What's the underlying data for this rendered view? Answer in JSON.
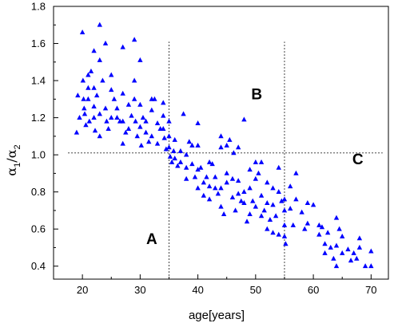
{
  "chart_data": {
    "type": "scatter",
    "xlabel": "age[years]",
    "ylabel": {
      "main": "α",
      "sub1": "1",
      "slash": "/α",
      "sub2": "2"
    },
    "xlim": [
      15,
      73
    ],
    "ylim": [
      0.33,
      1.8
    ],
    "x_ticks": [
      20,
      30,
      40,
      50,
      60,
      70
    ],
    "y_ticks": [
      0.4,
      0.6,
      0.8,
      1.0,
      1.2,
      1.4,
      1.6,
      1.8
    ],
    "x_tick_labels": [
      "20",
      "30",
      "40",
      "50",
      "60",
      "70"
    ],
    "y_tick_labels": [
      "0.4",
      "0.6",
      "0.8",
      "1.0",
      "1.2",
      "1.4",
      "1.6",
      "1.8"
    ],
    "grid": false,
    "marker": "triangle",
    "marker_color": "#0000ff",
    "reference_lines": {
      "horizontal": {
        "y": 1.01,
        "x_from": 17.5,
        "x_to": 72
      },
      "vertical": [
        {
          "x": 35,
          "y_from": 0.33,
          "y_to": 1.61
        },
        {
          "x": 55,
          "y_from": 0.33,
          "y_to": 1.61
        }
      ]
    },
    "region_labels": [
      {
        "text": "A",
        "x": 32,
        "y": 0.52
      },
      {
        "text": "B",
        "x": 50.2,
        "y": 1.3
      },
      {
        "text": "C",
        "x": 67.7,
        "y": 0.95
      }
    ],
    "points": [
      [
        19,
        1.12
      ],
      [
        19.2,
        1.32
      ],
      [
        19.5,
        1.2
      ],
      [
        20,
        1.66
      ],
      [
        20.1,
        1.4
      ],
      [
        20.2,
        1.3
      ],
      [
        20.3,
        1.25
      ],
      [
        20.4,
        1.22
      ],
      [
        20.6,
        1.16
      ],
      [
        21,
        1.43
      ],
      [
        21,
        1.36
      ],
      [
        21,
        1.3
      ],
      [
        21.2,
        1.18
      ],
      [
        21.5,
        1.45
      ],
      [
        22,
        1.56
      ],
      [
        22,
        1.36
      ],
      [
        22,
        1.26
      ],
      [
        22,
        1.2
      ],
      [
        22.2,
        1.13
      ],
      [
        22.5,
        1.32
      ],
      [
        23,
        1.7
      ],
      [
        23,
        1.51
      ],
      [
        23,
        1.22
      ],
      [
        23,
        1.1
      ],
      [
        23.5,
        1.4
      ],
      [
        24,
        1.6
      ],
      [
        24,
        1.25
      ],
      [
        24.2,
        1.18
      ],
      [
        24.5,
        1.14
      ],
      [
        25,
        1.43
      ],
      [
        25,
        1.35
      ],
      [
        25,
        1.2
      ],
      [
        25.5,
        1.3
      ],
      [
        26,
        1.25
      ],
      [
        26,
        1.2
      ],
      [
        26.5,
        1.18
      ],
      [
        27,
        1.58
      ],
      [
        27,
        1.33
      ],
      [
        27,
        1.18
      ],
      [
        27,
        1.06
      ],
      [
        27.5,
        1.12
      ],
      [
        28,
        1.27
      ],
      [
        28,
        1.14
      ],
      [
        28.5,
        1.21
      ],
      [
        29,
        1.62
      ],
      [
        29,
        1.4
      ],
      [
        29,
        1.3
      ],
      [
        29.2,
        1.18
      ],
      [
        29.5,
        1.1
      ],
      [
        30,
        1.51
      ],
      [
        30,
        1.27
      ],
      [
        30,
        1.15
      ],
      [
        30.2,
        1.05
      ],
      [
        30.5,
        1.2
      ],
      [
        31,
        1.18
      ],
      [
        31,
        1.12
      ],
      [
        31.5,
        1.07
      ],
      [
        32,
        1.3
      ],
      [
        32,
        1.24
      ],
      [
        32,
        1.1
      ],
      [
        32.5,
        1.3
      ],
      [
        33,
        1.17
      ],
      [
        33,
        1.06
      ],
      [
        33.5,
        1.14
      ],
      [
        34,
        1.28
      ],
      [
        34,
        1.21
      ],
      [
        34,
        1.14
      ],
      [
        34.2,
        1.09
      ],
      [
        34.5,
        1.03
      ],
      [
        35,
        1.18
      ],
      [
        35,
        1.1
      ],
      [
        35,
        1.04
      ],
      [
        35.2,
        0.99
      ],
      [
        35.5,
        0.96
      ],
      [
        35.8,
        1.02
      ],
      [
        36,
        1.08
      ],
      [
        36,
        0.98
      ],
      [
        36.5,
        0.94
      ],
      [
        37,
        1.02
      ],
      [
        37,
        0.96
      ],
      [
        37.5,
        1.22
      ],
      [
        38,
        1.0
      ],
      [
        38,
        0.93
      ],
      [
        38,
        0.87
      ],
      [
        38.5,
        1.07
      ],
      [
        39,
        1.05
      ],
      [
        39,
        0.95
      ],
      [
        39.5,
        0.88
      ],
      [
        40,
        1.17
      ],
      [
        40,
        1.05
      ],
      [
        40,
        0.92
      ],
      [
        40,
        0.82
      ],
      [
        40.5,
        0.93
      ],
      [
        41,
        0.85
      ],
      [
        41,
        0.78
      ],
      [
        41.5,
        0.88
      ],
      [
        42,
        0.96
      ],
      [
        42,
        0.83
      ],
      [
        42,
        0.76
      ],
      [
        42.5,
        0.95
      ],
      [
        43,
        0.88
      ],
      [
        43,
        0.82
      ],
      [
        43.5,
        0.79
      ],
      [
        44,
        1.1
      ],
      [
        44,
        1.04
      ],
      [
        44,
        0.82
      ],
      [
        44,
        0.72
      ],
      [
        44.5,
        0.68
      ],
      [
        45,
        1.05
      ],
      [
        45,
        0.9
      ],
      [
        45,
        0.85
      ],
      [
        45.5,
        1.08
      ],
      [
        46,
        0.87
      ],
      [
        46,
        0.77
      ],
      [
        46.2,
        1.01
      ],
      [
        46.5,
        0.7
      ],
      [
        47,
        1.04
      ],
      [
        47,
        0.86
      ],
      [
        47,
        0.79
      ],
      [
        47.5,
        0.75
      ],
      [
        48,
        1.19
      ],
      [
        48,
        0.8
      ],
      [
        48,
        0.74
      ],
      [
        48.5,
        0.64
      ],
      [
        49,
        0.92
      ],
      [
        49,
        0.82
      ],
      [
        49,
        0.68
      ],
      [
        49.5,
        0.75
      ],
      [
        50,
        0.96
      ],
      [
        50,
        0.87
      ],
      [
        50,
        0.72
      ],
      [
        50.5,
        0.9
      ],
      [
        51,
        0.96
      ],
      [
        51,
        0.78
      ],
      [
        51,
        0.67
      ],
      [
        51.5,
        0.7
      ],
      [
        52,
        0.85
      ],
      [
        52,
        0.74
      ],
      [
        52,
        0.6
      ],
      [
        52.5,
        0.65
      ],
      [
        53,
        0.82
      ],
      [
        53,
        0.73
      ],
      [
        53,
        0.58
      ],
      [
        53.5,
        0.67
      ],
      [
        54,
        0.93
      ],
      [
        54,
        0.8
      ],
      [
        54,
        0.57
      ],
      [
        54.5,
        0.75
      ],
      [
        55,
        0.76
      ],
      [
        55,
        0.7
      ],
      [
        55,
        0.62
      ],
      [
        55,
        0.56
      ],
      [
        55.2,
        0.52
      ],
      [
        56,
        0.83
      ],
      [
        56,
        0.71
      ],
      [
        56.5,
        0.62
      ],
      [
        57,
        0.9
      ],
      [
        57,
        0.76
      ],
      [
        58,
        0.69
      ],
      [
        58.5,
        0.6
      ],
      [
        59,
        0.74
      ],
      [
        59,
        0.63
      ],
      [
        60,
        0.73
      ],
      [
        61,
        0.62
      ],
      [
        61,
        0.57
      ],
      [
        61.5,
        0.61
      ],
      [
        62,
        0.52
      ],
      [
        62,
        0.47
      ],
      [
        62.5,
        0.58
      ],
      [
        63,
        0.5
      ],
      [
        63.5,
        0.44
      ],
      [
        64,
        0.66
      ],
      [
        64,
        0.51
      ],
      [
        64,
        0.4
      ],
      [
        64.5,
        0.6
      ],
      [
        65,
        0.56
      ],
      [
        65,
        0.47
      ],
      [
        66,
        0.49
      ],
      [
        66.5,
        0.43
      ],
      [
        67,
        0.47
      ],
      [
        67.5,
        0.44
      ],
      [
        68,
        0.55
      ],
      [
        68,
        0.5
      ],
      [
        69,
        0.4
      ],
      [
        70,
        0.48
      ],
      [
        70,
        0.4
      ]
    ]
  }
}
